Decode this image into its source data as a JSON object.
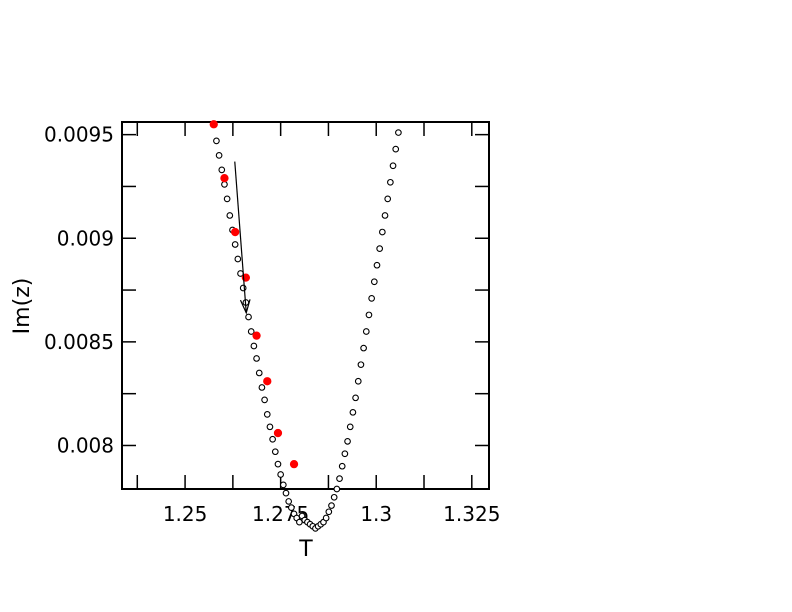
{
  "chart_data": {
    "type": "scatter",
    "title": "",
    "xlabel": "T",
    "ylabel": "Im(z)",
    "xlim": [
      1.2335,
      1.3295
    ],
    "ylim": [
      0.00779,
      0.009561
    ],
    "xticks": [
      {
        "value": 1.25,
        "label": "1.25"
      },
      {
        "value": 1.275,
        "label": "1.275"
      },
      {
        "value": 1.3,
        "label": "1.3"
      },
      {
        "value": 1.325,
        "label": "1.325"
      }
    ],
    "yticks": [
      {
        "value": 0.008,
        "label": "0.008"
      },
      {
        "value": 0.0085,
        "label": "0.0085"
      },
      {
        "value": 0.009,
        "label": "0.009"
      },
      {
        "value": 0.0095,
        "label": "0.0095"
      }
    ],
    "grid": false,
    "legend": "none",
    "colors": {
      "open_marker": "#000000",
      "highlight_marker": "#ff0000"
    },
    "series": [
      {
        "marker": "open-circle",
        "color": "#000000",
        "points": [
          [
            1.2575,
            0.00955
          ],
          [
            1.2582,
            0.00947
          ],
          [
            1.2589,
            0.0094
          ],
          [
            1.2596,
            0.00933
          ],
          [
            1.2603,
            0.00926
          ],
          [
            1.261,
            0.00919
          ],
          [
            1.2617,
            0.00911
          ],
          [
            1.2624,
            0.00904
          ],
          [
            1.2631,
            0.00897
          ],
          [
            1.2638,
            0.0089
          ],
          [
            1.2645,
            0.00883
          ],
          [
            1.2652,
            0.00876
          ],
          [
            1.2659,
            0.00869
          ],
          [
            1.2666,
            0.00862
          ],
          [
            1.2673,
            0.00855
          ],
          [
            1.268,
            0.00848
          ],
          [
            1.2687,
            0.00842
          ],
          [
            1.2694,
            0.00835
          ],
          [
            1.2701,
            0.00828
          ],
          [
            1.2708,
            0.00822
          ],
          [
            1.2715,
            0.00815
          ],
          [
            1.2722,
            0.00809
          ],
          [
            1.2729,
            0.00803
          ],
          [
            1.2736,
            0.00797
          ],
          [
            1.2743,
            0.00791
          ],
          [
            1.275,
            0.00786
          ],
          [
            1.2757,
            0.00781
          ],
          [
            1.2764,
            0.00777
          ],
          [
            1.2771,
            0.00773
          ],
          [
            1.2778,
            0.0077
          ],
          [
            1.2785,
            0.00767
          ],
          [
            1.2792,
            0.00765
          ],
          [
            1.2799,
            0.00763
          ],
          [
            1.2806,
            0.00766
          ],
          [
            1.2813,
            0.00764
          ],
          [
            1.282,
            0.00763
          ],
          [
            1.2827,
            0.00762
          ],
          [
            1.2834,
            0.00761
          ],
          [
            1.2841,
            0.0076
          ],
          [
            1.2848,
            0.00761
          ],
          [
            1.2855,
            0.00762
          ],
          [
            1.2862,
            0.00763
          ],
          [
            1.2869,
            0.00765
          ],
          [
            1.2876,
            0.00768
          ],
          [
            1.2883,
            0.00771
          ],
          [
            1.289,
            0.00775
          ],
          [
            1.2897,
            0.00779
          ],
          [
            1.2904,
            0.00784
          ],
          [
            1.2911,
            0.0079
          ],
          [
            1.2918,
            0.00796
          ],
          [
            1.2925,
            0.00802
          ],
          [
            1.2932,
            0.00809
          ],
          [
            1.2939,
            0.00816
          ],
          [
            1.2946,
            0.00823
          ],
          [
            1.2953,
            0.00831
          ],
          [
            1.296,
            0.00839
          ],
          [
            1.2967,
            0.00847
          ],
          [
            1.2974,
            0.00855
          ],
          [
            1.2981,
            0.00863
          ],
          [
            1.2988,
            0.00871
          ],
          [
            1.2995,
            0.00879
          ],
          [
            1.3002,
            0.00887
          ],
          [
            1.3009,
            0.00895
          ],
          [
            1.3016,
            0.00903
          ],
          [
            1.3023,
            0.00911
          ],
          [
            1.303,
            0.00919
          ],
          [
            1.3037,
            0.00927
          ],
          [
            1.3044,
            0.00935
          ],
          [
            1.3051,
            0.00943
          ],
          [
            1.3058,
            0.00951
          ]
        ]
      },
      {
        "marker": "filled-circle",
        "color": "#ff0000",
        "points": [
          [
            1.2575,
            0.00955
          ],
          [
            1.2603,
            0.00929
          ],
          [
            1.2631,
            0.00903
          ],
          [
            1.2659,
            0.00881
          ],
          [
            1.2687,
            0.00853
          ],
          [
            1.2715,
            0.00831
          ],
          [
            1.2743,
            0.00806
          ],
          [
            1.2785,
            0.00791
          ]
        ]
      }
    ],
    "annotations": [
      {
        "type": "arrow",
        "from": [
          1.263,
          0.00937
        ],
        "to": [
          1.266,
          0.00864
        ]
      }
    ]
  }
}
